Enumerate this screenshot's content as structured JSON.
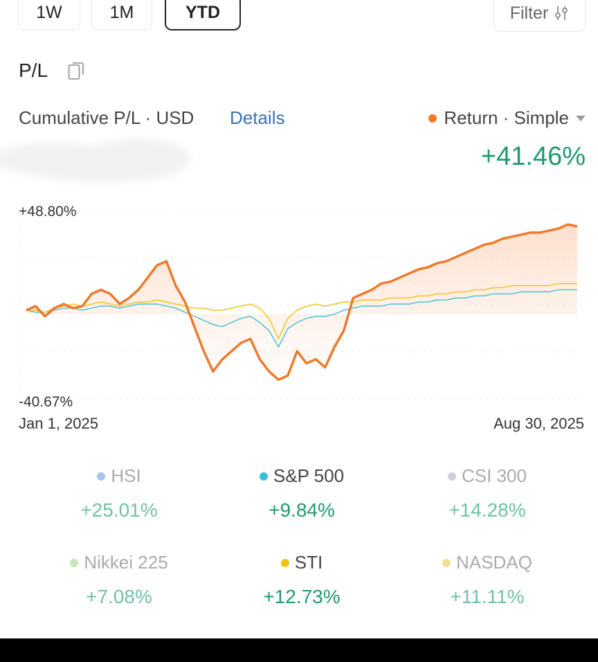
{
  "range_tabs": [
    {
      "label": "1W"
    },
    {
      "label": "1M"
    },
    {
      "label": "YTD",
      "active": true
    }
  ],
  "filter": {
    "label": "Filter",
    "icon": "sliders-icon"
  },
  "pl": {
    "title": "P/L",
    "icon": "copy-icon"
  },
  "cumulative": {
    "label": "Cumulative P/L · USD",
    "details": "Details"
  },
  "return_selector": {
    "label": "Return · Simple",
    "dot_color": "#f07a2a"
  },
  "return_value": "+41.46%",
  "chart_data": {
    "type": "line",
    "x_start": "Jan 1, 2025",
    "x_end": "Aug 30, 2025",
    "y_max_label": "+48.80%",
    "y_min_label": "-40.67%",
    "ylim": [
      -40.67,
      48.8
    ],
    "grid": true,
    "series": [
      {
        "color": "#ee7a2b",
        "values": [
          0,
          2,
          -3,
          1,
          3,
          1,
          2,
          8,
          10,
          8,
          3,
          6,
          10,
          16,
          22,
          24,
          12,
          4,
          -8,
          -20,
          -30,
          -24,
          -20,
          -16,
          -14,
          -24,
          -30,
          -34,
          -32,
          -20,
          -26,
          -24,
          -28,
          -18,
          -10,
          6,
          8,
          10,
          13,
          14,
          16,
          18,
          20,
          21,
          23,
          24,
          26,
          28,
          30,
          32,
          33,
          35,
          36,
          37,
          38,
          38,
          39,
          40,
          42,
          41
        ]
      },
      {
        "color": "#f2c623",
        "values": [
          0,
          0,
          -1,
          1,
          2,
          3,
          2,
          3,
          4,
          3,
          2,
          3,
          4,
          4,
          5,
          4,
          3,
          2,
          1,
          1,
          0,
          0,
          1,
          2,
          3,
          1,
          -4,
          -14,
          -4,
          0,
          2,
          3,
          2,
          3,
          4,
          4,
          5,
          5,
          5,
          6,
          6,
          6,
          7,
          7,
          8,
          8,
          9,
          9,
          10,
          10,
          11,
          11,
          12,
          12,
          12,
          12,
          12,
          13,
          13,
          13
        ]
      },
      {
        "color": "#57c3d9",
        "values": [
          0,
          -1,
          -1,
          0,
          1,
          1,
          0,
          1,
          2,
          2,
          1,
          2,
          3,
          3,
          3,
          2,
          1,
          -1,
          -3,
          -5,
          -7,
          -8,
          -6,
          -4,
          -3,
          -6,
          -10,
          -18,
          -9,
          -6,
          -4,
          -3,
          -3,
          -2,
          0,
          1,
          2,
          2,
          2,
          3,
          3,
          3,
          4,
          4,
          5,
          5,
          6,
          6,
          7,
          7,
          8,
          8,
          8,
          9,
          9,
          9,
          9,
          10,
          10,
          10
        ]
      }
    ]
  },
  "benchmarks": [
    {
      "name": "HSI",
      "value": "+25.01%",
      "dot": "#a8c4ef",
      "strong": false
    },
    {
      "name": "S&P 500",
      "value": "+9.84%",
      "dot": "#35c0dc",
      "strong": true
    },
    {
      "name": "CSI 300",
      "value": "+14.28%",
      "dot": "#cfcfd8",
      "strong": false
    },
    {
      "name": "Nikkei 225",
      "value": "+7.08%",
      "dot": "#c9e6b6",
      "strong": false
    },
    {
      "name": "STI",
      "value": "+12.73%",
      "dot": "#f0c419",
      "strong": true
    },
    {
      "name": "NASDAQ",
      "value": "+11.11%",
      "dot": "#f7df97",
      "strong": false
    }
  ]
}
